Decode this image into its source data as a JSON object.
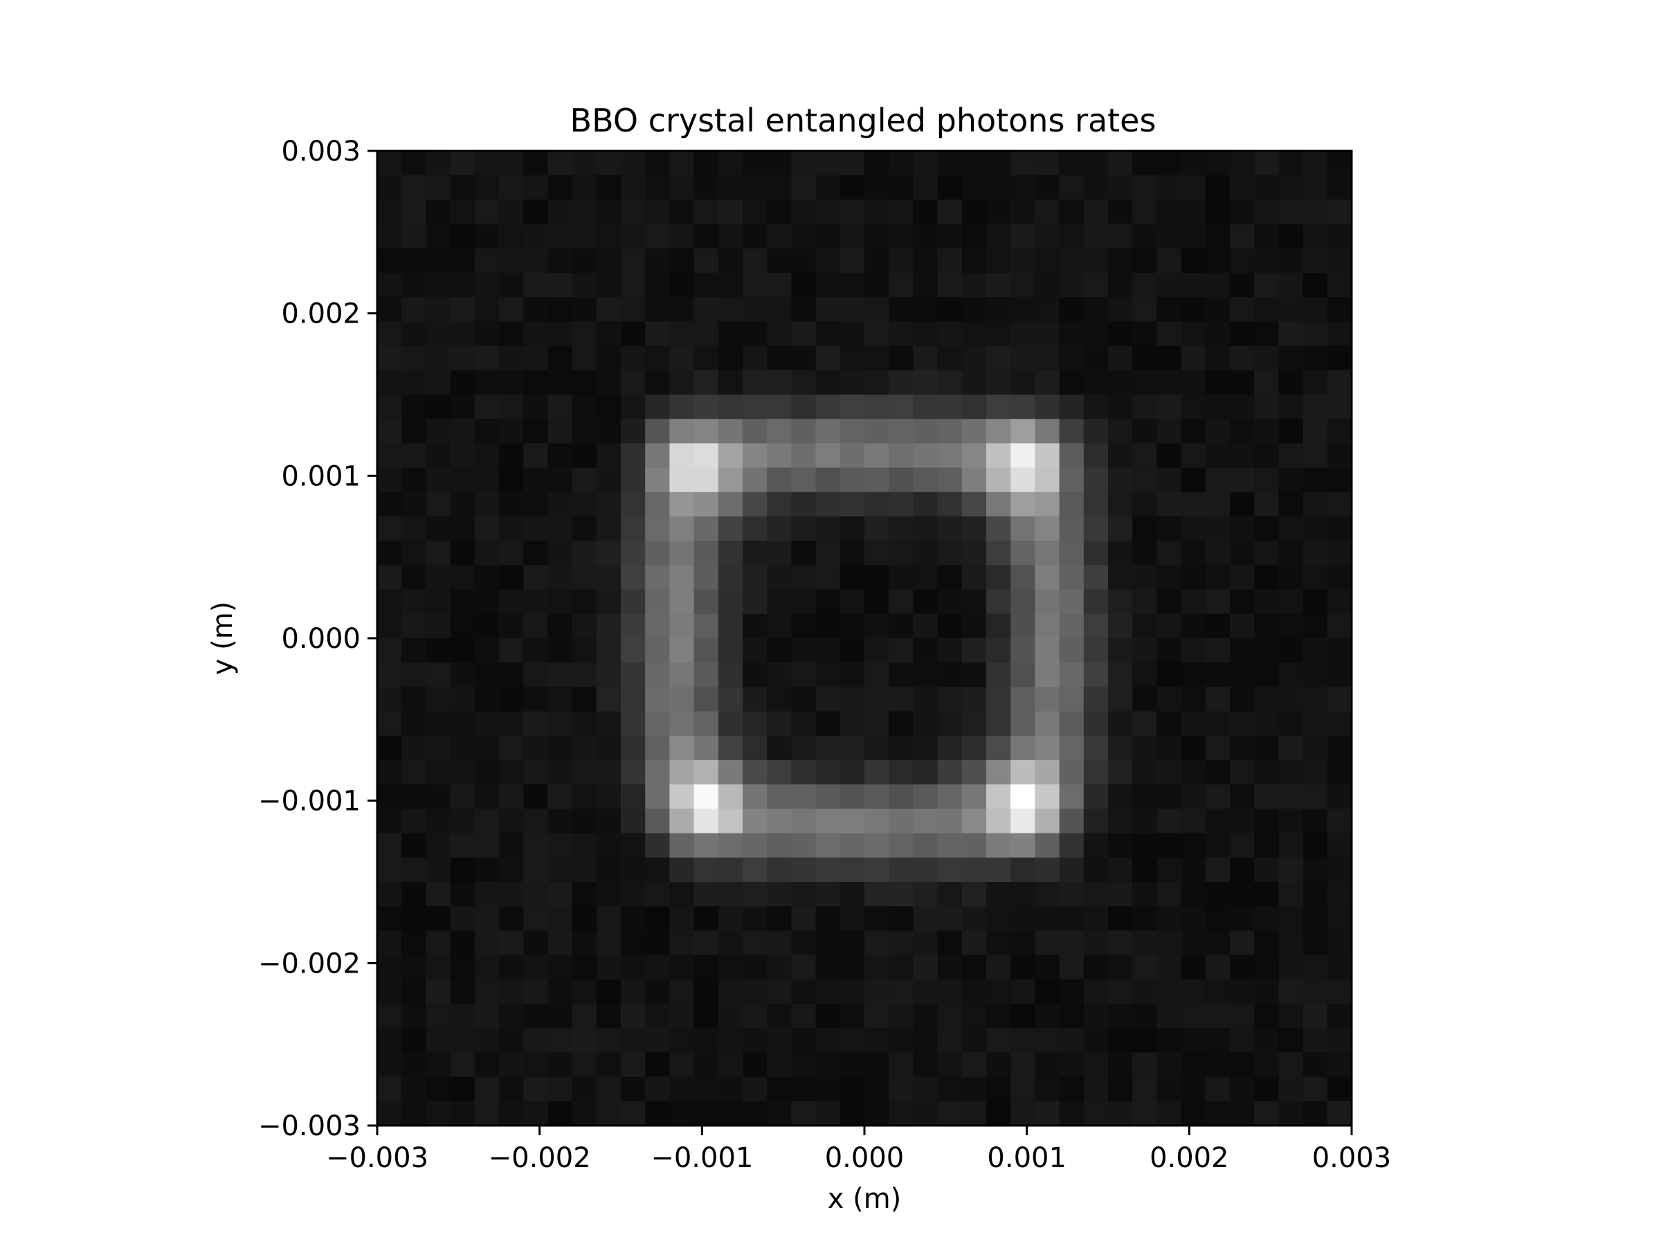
{
  "chart_data": {
    "type": "heatmap",
    "title": "BBO crystal entangled photons rates",
    "xlabel": "x (m)",
    "ylabel": "y (m)",
    "xlim": [
      -0.003,
      0.003
    ],
    "ylim": [
      -0.003,
      0.003
    ],
    "xticks": [
      -0.003,
      -0.002,
      -0.001,
      0.0,
      0.001,
      0.002,
      0.003
    ],
    "yticks": [
      -0.003,
      -0.002,
      -0.001,
      0.0,
      0.001,
      0.002,
      0.003
    ],
    "xtick_labels": [
      "−0.003",
      "−0.002",
      "−0.001",
      "0.000",
      "0.001",
      "0.002",
      "0.003"
    ],
    "ytick_labels": [
      "−0.003",
      "−0.002",
      "−0.001",
      "0.000",
      "0.001",
      "0.002",
      "0.003"
    ],
    "colormap": "gray",
    "grid": false,
    "legend": "none",
    "grid_cells": [
      40,
      40
    ],
    "intensity_model": {
      "background": 0.07,
      "noise": 0.035,
      "ring": {
        "shape": "rounded-square",
        "half_width": 0.00115,
        "thickness": 0.00028,
        "amplitude": 0.4
      },
      "hotspots": [
        {
          "x": -0.00108,
          "y": 0.0011,
          "amplitude": 0.55
        },
        {
          "x": 0.001,
          "y": 0.0011,
          "amplitude": 0.55
        },
        {
          "x": -0.001,
          "y": -0.00103,
          "amplitude": 0.55
        },
        {
          "x": 0.001,
          "y": -0.00103,
          "amplitude": 0.55
        }
      ],
      "hotspot_sigma": 0.00017
    }
  }
}
